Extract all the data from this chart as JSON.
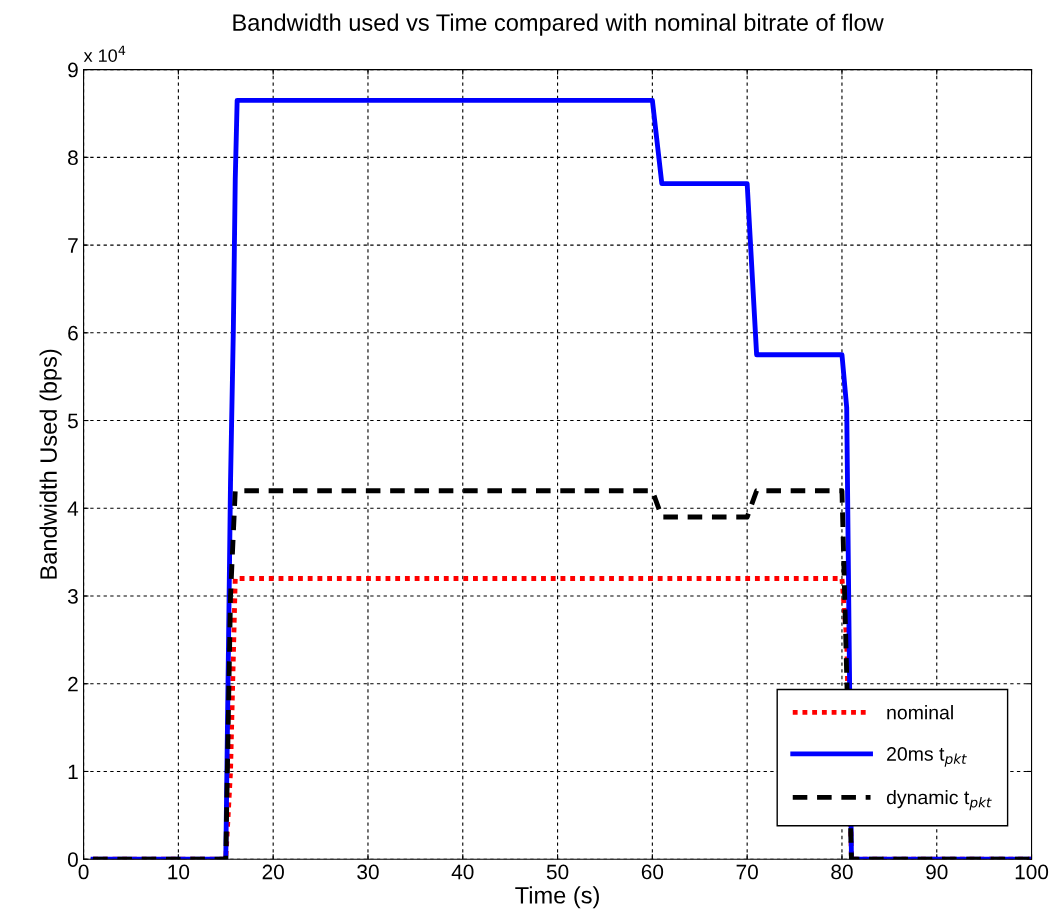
{
  "chart_data": {
    "type": "line",
    "title": "Bandwidth used vs Time compared with nominal bitrate of flow",
    "xlabel": "Time (s)",
    "ylabel": "Bandwidth Used (bps)",
    "annotations": [
      "x 10$^{4}$"
    ],
    "series": [
      {
        "name": "nominal",
        "color": "#ff0000",
        "line_style": "dotted",
        "x": [
          1,
          15,
          15.5,
          16,
          80,
          80.5,
          81,
          100
        ],
        "values": [
          0,
          0,
          1.0,
          3.2,
          3.2,
          2.5,
          0,
          0
        ]
      },
      {
        "name": "20ms t$_{pkt}$",
        "color": "#0000ff",
        "line_style": "solid",
        "x": [
          1,
          15,
          15.1,
          15.3,
          15.5,
          15.8,
          16,
          16.2,
          60,
          61,
          70,
          71,
          80,
          80.5,
          81,
          100
        ],
        "values": [
          0,
          0,
          0.85,
          2.55,
          4.3,
          6.05,
          7.75,
          8.65,
          8.65,
          7.7,
          7.7,
          5.75,
          5.75,
          5.15,
          0,
          0
        ]
      },
      {
        "name": "dynamic t$_{pkt}$",
        "color": "#000000",
        "line_style": "dashed",
        "x": [
          1,
          15,
          15.5,
          16,
          60,
          61,
          70,
          71,
          80,
          81,
          100
        ],
        "values": [
          0,
          0,
          3.0,
          4.2,
          4.2,
          3.9,
          3.9,
          4.2,
          4.2,
          0,
          0
        ]
      }
    ],
    "xlim": [
      0,
      100
    ],
    "xticks": [
      0,
      10,
      20,
      30,
      40,
      50,
      60,
      70,
      80,
      90,
      100
    ],
    "ylim": [
      0,
      9
    ],
    "yticks": [
      0,
      1,
      2,
      3,
      4,
      5,
      6,
      7,
      8,
      9
    ],
    "grid": true,
    "legend": "bottom right"
  }
}
